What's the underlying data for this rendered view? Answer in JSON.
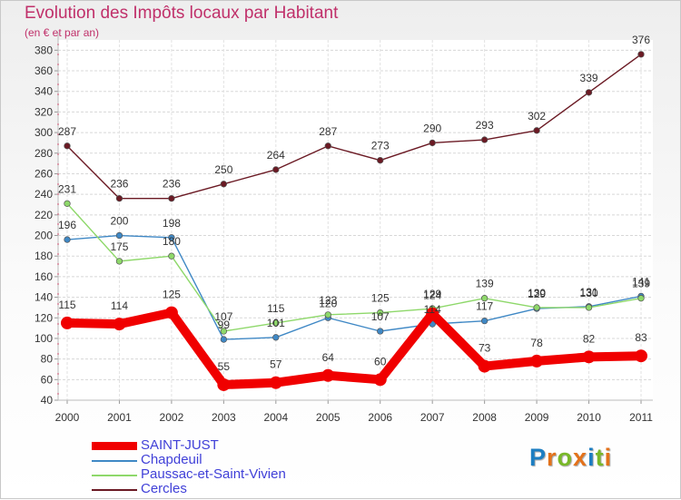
{
  "title": "Evolution des Impôts locaux par Habitant",
  "subtitle": "(en € et par an)",
  "logo": {
    "text": "Proxiti",
    "letter_colors": [
      "#1d7ec2",
      "#e3721b",
      "#79b829",
      "#e3721b",
      "#1d7ec2",
      "#79b829",
      "#e3721b"
    ]
  },
  "chart_data": {
    "type": "line",
    "title": "Evolution des Impôts locaux par Habitant",
    "subtitle": "(en € et par an)",
    "x": [
      "2000",
      "2001",
      "2002",
      "2003",
      "2004",
      "2005",
      "2006",
      "2007",
      "2008",
      "2009",
      "2010",
      "2011"
    ],
    "ylim": [
      40,
      390
    ],
    "yticks": [
      40,
      60,
      80,
      100,
      120,
      140,
      160,
      180,
      200,
      220,
      240,
      260,
      280,
      300,
      320,
      340,
      360,
      380
    ],
    "grid": true,
    "legend_position": "bottom-left",
    "series": [
      {
        "name": "Cercles",
        "color": "#6b1a24",
        "values": [
          287,
          236,
          236,
          250,
          264,
          287,
          273,
          290,
          293,
          302,
          339,
          376
        ]
      },
      {
        "name": "Chapdeuil",
        "color": "#3f88c5",
        "values": [
          196,
          200,
          198,
          99,
          101,
          120,
          107,
          114,
          117,
          129,
          131,
          141
        ]
      },
      {
        "name": "Paussac-et-Saint-Vivien",
        "color": "#8ed86a",
        "values": [
          231,
          175,
          180,
          107,
          115,
          123,
          125,
          129,
          139,
          130,
          130,
          139
        ]
      },
      {
        "name": "SAINT-JUST",
        "color": "#f00000",
        "values": [
          115,
          114,
          125,
          55,
          57,
          64,
          60,
          124,
          73,
          78,
          82,
          83
        ]
      }
    ],
    "legend": [
      "SAINT-JUST",
      "Chapdeuil",
      "Paussac-et-Saint-Vivien",
      "Cercles"
    ]
  }
}
